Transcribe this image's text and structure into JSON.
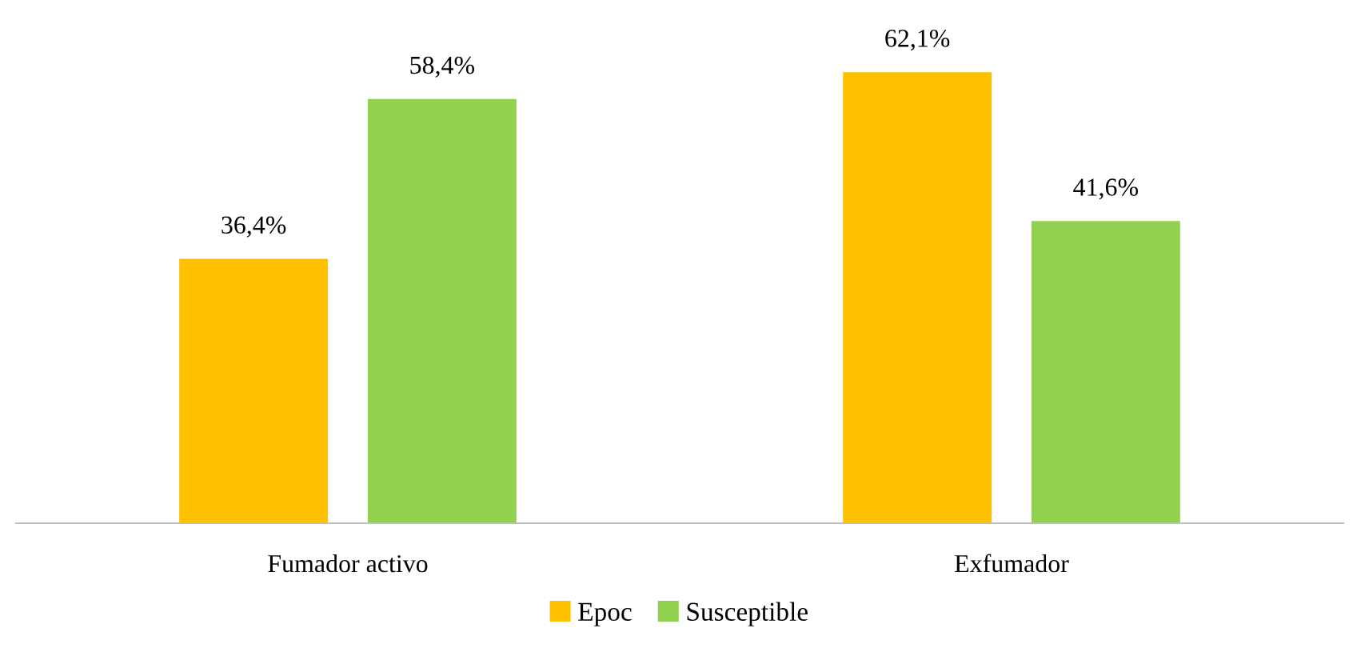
{
  "chart_data": {
    "type": "bar",
    "categories": [
      "Fumador activo",
      "Exfumador"
    ],
    "series": [
      {
        "name": "Epoc",
        "color": "#ffc000",
        "values": [
          36.4,
          62.1
        ],
        "value_labels": [
          "36,4%",
          "62,1%"
        ]
      },
      {
        "name": "Susceptible",
        "color": "#92d050",
        "values": [
          58.4,
          41.6
        ],
        "value_labels": [
          "58,4%",
          "41,6%"
        ]
      }
    ],
    "grid": false,
    "legend": "bottom"
  }
}
